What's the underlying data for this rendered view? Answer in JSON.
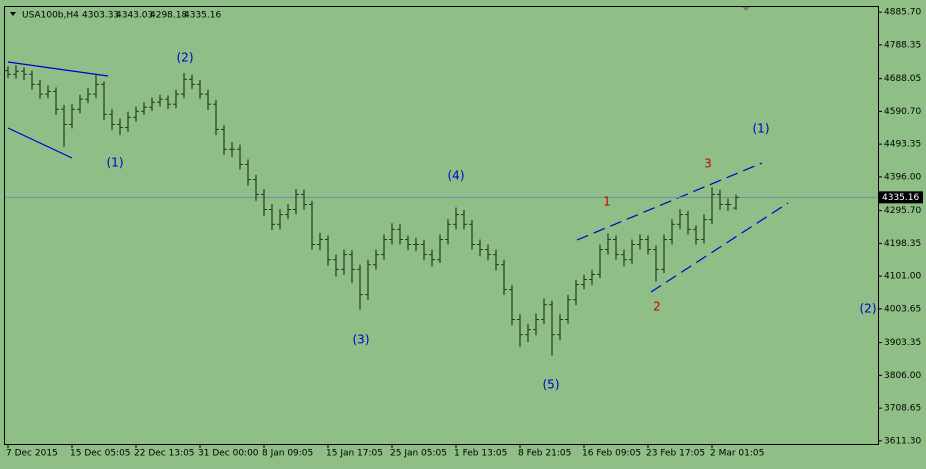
{
  "chart_data": {
    "type": "ohlc",
    "header": {
      "symbol": "USA100b,H4",
      "open": 4303.33,
      "high": 4343.03,
      "low": 4298.18,
      "close": 4335.16
    },
    "categories": [
      "7 Dec 2015",
      null,
      null,
      null,
      null,
      null,
      null,
      null,
      "15 Dec 05:05",
      null,
      null,
      null,
      null,
      null,
      null,
      null,
      "22 Dec 13:05",
      null,
      null,
      null,
      null,
      null,
      null,
      null,
      "31 Dec 00:00",
      null,
      null,
      null,
      null,
      null,
      null,
      null,
      "8 Jan 09:05",
      null,
      null,
      null,
      null,
      null,
      null,
      null,
      "15 Jan 17:05",
      null,
      null,
      null,
      null,
      null,
      null,
      null,
      "25 Jan 05:05",
      null,
      null,
      null,
      null,
      null,
      null,
      null,
      "1 Feb 13:05",
      null,
      null,
      null,
      null,
      null,
      null,
      null,
      "8 Feb 21:05",
      null,
      null,
      null,
      null,
      null,
      null,
      null,
      "16 Feb 09:05",
      null,
      null,
      null,
      null,
      null,
      null,
      null,
      "23 Feb 17:05",
      null,
      null,
      null,
      null,
      null,
      null,
      null,
      "2 Mar 01:05",
      null,
      null,
      null
    ],
    "open": [
      4712,
      4701,
      4710,
      4701,
      4671,
      4642,
      4650,
      4597,
      4552,
      4597,
      4627,
      4642,
      4671,
      4582,
      4552,
      4543,
      4573,
      4591,
      4603,
      4618,
      4627,
      4612,
      4642,
      4686,
      4671,
      4642,
      4612,
      4537,
      4478,
      4478,
      4433,
      4388,
      4344,
      4299,
      4255,
      4284,
      4299,
      4344,
      4314,
      4195,
      4210,
      4150,
      4121,
      4165,
      4121,
      4046,
      4135,
      4165,
      4210,
      4240,
      4210,
      4195,
      4195,
      4165,
      4150,
      4210,
      4255,
      4284,
      4255,
      4195,
      4180,
      4165,
      4135,
      4061,
      3972,
      3927,
      3942,
      3972,
      4016,
      3927,
      3972,
      4031,
      4076,
      4091,
      4106,
      4180,
      4210,
      4165,
      4150,
      4195,
      4210,
      4180,
      4121,
      4210,
      4255,
      4284,
      4240,
      4210,
      4269,
      4344,
      4314,
      4303.33
    ],
    "high": [
      4725,
      4728,
      4722,
      4712,
      4684,
      4668,
      4662,
      4610,
      4612,
      4640,
      4660,
      4700,
      4680,
      4598,
      4570,
      4590,
      4605,
      4618,
      4632,
      4640,
      4638,
      4655,
      4705,
      4700,
      4684,
      4655,
      4625,
      4550,
      4500,
      4492,
      4448,
      4402,
      4360,
      4315,
      4300,
      4315,
      4360,
      4358,
      4325,
      4230,
      4222,
      4165,
      4180,
      4178,
      4135,
      4150,
      4180,
      4225,
      4258,
      4255,
      4222,
      4215,
      4208,
      4180,
      4225,
      4270,
      4305,
      4298,
      4268,
      4210,
      4195,
      4180,
      4150,
      4075,
      3988,
      3960,
      3990,
      4035,
      4028,
      3988,
      4045,
      4090,
      4105,
      4120,
      4195,
      4228,
      4222,
      4180,
      4210,
      4225,
      4222,
      4192,
      4225,
      4270,
      4300,
      4295,
      4252,
      4285,
      4365,
      4358,
      4332,
      4343.03
    ],
    "low": [
      4690,
      4688,
      4684,
      4655,
      4628,
      4630,
      4580,
      4485,
      4540,
      4585,
      4615,
      4630,
      4565,
      4535,
      4520,
      4530,
      4560,
      4580,
      4592,
      4605,
      4598,
      4600,
      4630,
      4658,
      4628,
      4595,
      4520,
      4462,
      4455,
      4418,
      4370,
      4325,
      4280,
      4238,
      4240,
      4270,
      4285,
      4298,
      4180,
      4178,
      4132,
      4100,
      4105,
      4080,
      4001,
      4030,
      4120,
      4150,
      4195,
      4195,
      4178,
      4175,
      4148,
      4130,
      4140,
      4195,
      4240,
      4240,
      4180,
      4160,
      4148,
      4118,
      4045,
      3955,
      3890,
      3905,
      3925,
      3958,
      3865,
      3910,
      3960,
      4015,
      4062,
      4075,
      4095,
      4165,
      4150,
      4130,
      4138,
      4180,
      4165,
      4085,
      4110,
      4195,
      4240,
      4225,
      4195,
      4198,
      4255,
      4298,
      4295,
      4298.18
    ],
    "close": [
      4701,
      4710,
      4701,
      4671,
      4642,
      4650,
      4597,
      4552,
      4597,
      4627,
      4642,
      4671,
      4582,
      4552,
      4543,
      4573,
      4591,
      4603,
      4618,
      4627,
      4612,
      4642,
      4686,
      4671,
      4642,
      4612,
      4537,
      4478,
      4478,
      4433,
      4388,
      4344,
      4299,
      4255,
      4284,
      4299,
      4344,
      4314,
      4195,
      4210,
      4150,
      4121,
      4165,
      4121,
      4046,
      4135,
      4165,
      4210,
      4240,
      4210,
      4195,
      4195,
      4165,
      4150,
      4210,
      4255,
      4284,
      4255,
      4195,
      4180,
      4165,
      4135,
      4061,
      3972,
      3927,
      3942,
      3972,
      4016,
      3927,
      3972,
      4031,
      4076,
      4091,
      4106,
      4180,
      4210,
      4165,
      4150,
      4195,
      4210,
      4180,
      4121,
      4210,
      4255,
      4284,
      4240,
      4210,
      4269,
      4344,
      4314,
      4314,
      4335.16
    ],
    "color": "#263a26",
    "ylim": [
      3602,
      4901
    ],
    "yticks": [
      {
        "value": 4885.7,
        "label": "4885.70"
      },
      {
        "value": 4788.35,
        "label": "4788.35"
      },
      {
        "value": 4688.05,
        "label": "4688.05"
      },
      {
        "value": 4590.7,
        "label": "4590.70"
      },
      {
        "value": 4493.35,
        "label": "4493.35"
      },
      {
        "value": 4396,
        "label": "4396.00"
      },
      {
        "value": 4295.7,
        "label": "4295.70"
      },
      {
        "value": 4198.35,
        "label": "4198.35"
      },
      {
        "value": 4101,
        "label": "4101.00"
      },
      {
        "value": 4003.65,
        "label": "4003.65"
      },
      {
        "value": 3903.35,
        "label": "3903.35"
      },
      {
        "value": 3806,
        "label": "3806.00"
      },
      {
        "value": 3708.65,
        "label": "3708.65"
      },
      {
        "value": 3611.3,
        "label": "3611.30"
      }
    ],
    "price_line": {
      "value": 4335.16,
      "label": "4335.16"
    },
    "annotations": [
      {
        "text": "(2)",
        "color": "#0000cc"
      },
      {
        "text": "(1)",
        "color": "#0000cc"
      },
      {
        "text": "(4)",
        "color": "#0000cc"
      },
      {
        "text": "(3)",
        "color": "#0000cc"
      },
      {
        "text": "(5)",
        "color": "#0000cc"
      },
      {
        "text": "1",
        "color": "#cc0000"
      },
      {
        "text": "2",
        "color": "#cc0000"
      },
      {
        "text": "3",
        "color": "#cc0000"
      },
      {
        "text": "(1)",
        "color": "#0000cc"
      },
      {
        "text": "(2)",
        "color": "#0000cc"
      }
    ]
  }
}
